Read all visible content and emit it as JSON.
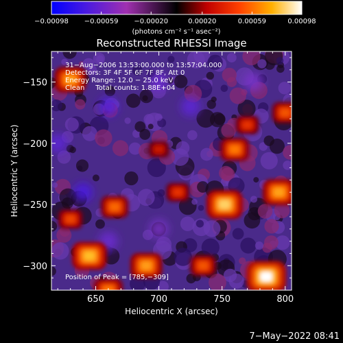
{
  "chart_data": {
    "type": "heatmap",
    "title": "Reconstructed RHESSI Image",
    "xlabel": "Heliocentric X (arcsec)",
    "ylabel": "Heliocentric Y (arcsec)",
    "xlim": [
      615,
      805
    ],
    "ylim": [
      -320,
      -125
    ],
    "x_ticks": [
      650,
      700,
      750,
      800
    ],
    "x_tick_labels": [
      "650",
      "700",
      "750",
      "800"
    ],
    "y_ticks": [
      -150,
      -200,
      -250,
      -300
    ],
    "y_tick_labels": [
      "−150",
      "−200",
      "−250",
      "−300"
    ],
    "colorbar": {
      "range": [
        -0.00098,
        0.00098
      ],
      "ticks": [
        -0.00098,
        -0.00059,
        -0.0002,
        0.0002,
        0.00059,
        0.00098
      ],
      "tick_labels": [
        "−0.00098",
        "−0.00059",
        "−0.00020",
        "0.00020",
        "0.00059",
        "0.00098"
      ],
      "unit_label": "(photons cm⁻² s⁻¹ asec⁻²)",
      "colors": [
        "#0000ff",
        "#6a2ad0",
        "#a030b0",
        "#000000",
        "#c00000",
        "#ff6000",
        "#ffb000",
        "#ffffff"
      ]
    },
    "annotations": [
      "31−Aug−2006 13:53:00.000 to 13:57:04.000",
      "Detectors: 3F 4F 5F 6F 7F 8F, Att 0",
      "Energy Range: 12.0 − 25.0 keV",
      "Clean     Total counts: 1.88E+04"
    ],
    "peak_label": "Position of Peak = [785,−309]",
    "peak": [
      785,
      -309
    ],
    "bright_sources": [
      {
        "x": 752,
        "y": -250,
        "value": 0.00085
      },
      {
        "x": 785,
        "y": -309,
        "value": 0.00098
      },
      {
        "x": 645,
        "y": -292,
        "value": 0.0008
      },
      {
        "x": 630,
        "y": -148,
        "value": 0.0007
      },
      {
        "x": 690,
        "y": -300,
        "value": 0.0007
      },
      {
        "x": 795,
        "y": -240,
        "value": 0.00072
      },
      {
        "x": 665,
        "y": -252,
        "value": 0.00055
      },
      {
        "x": 735,
        "y": -300,
        "value": 0.0005
      },
      {
        "x": 760,
        "y": -205,
        "value": 0.0006
      },
      {
        "x": 630,
        "y": -262,
        "value": 0.00045
      },
      {
        "x": 715,
        "y": -240,
        "value": 0.0004
      },
      {
        "x": 800,
        "y": -175,
        "value": 0.0005
      },
      {
        "x": 770,
        "y": -185,
        "value": 0.0004
      },
      {
        "x": 700,
        "y": -205,
        "value": 0.0003
      },
      {
        "x": 660,
        "y": -320,
        "value": 0.0006
      }
    ],
    "negative_sources": [
      {
        "x": 660,
        "y": -170,
        "value": -0.0007
      },
      {
        "x": 725,
        "y": -170,
        "value": -0.0006
      },
      {
        "x": 640,
        "y": -240,
        "value": -0.00075
      },
      {
        "x": 660,
        "y": -280,
        "value": -0.0005
      },
      {
        "x": 700,
        "y": -150,
        "value": -0.0005
      },
      {
        "x": 775,
        "y": -150,
        "value": -0.0004
      },
      {
        "x": 620,
        "y": -200,
        "value": -0.0006
      },
      {
        "x": 700,
        "y": -270,
        "value": -0.0004
      }
    ]
  },
  "footer": {
    "timestamp": "7−May−2022 08:41"
  }
}
